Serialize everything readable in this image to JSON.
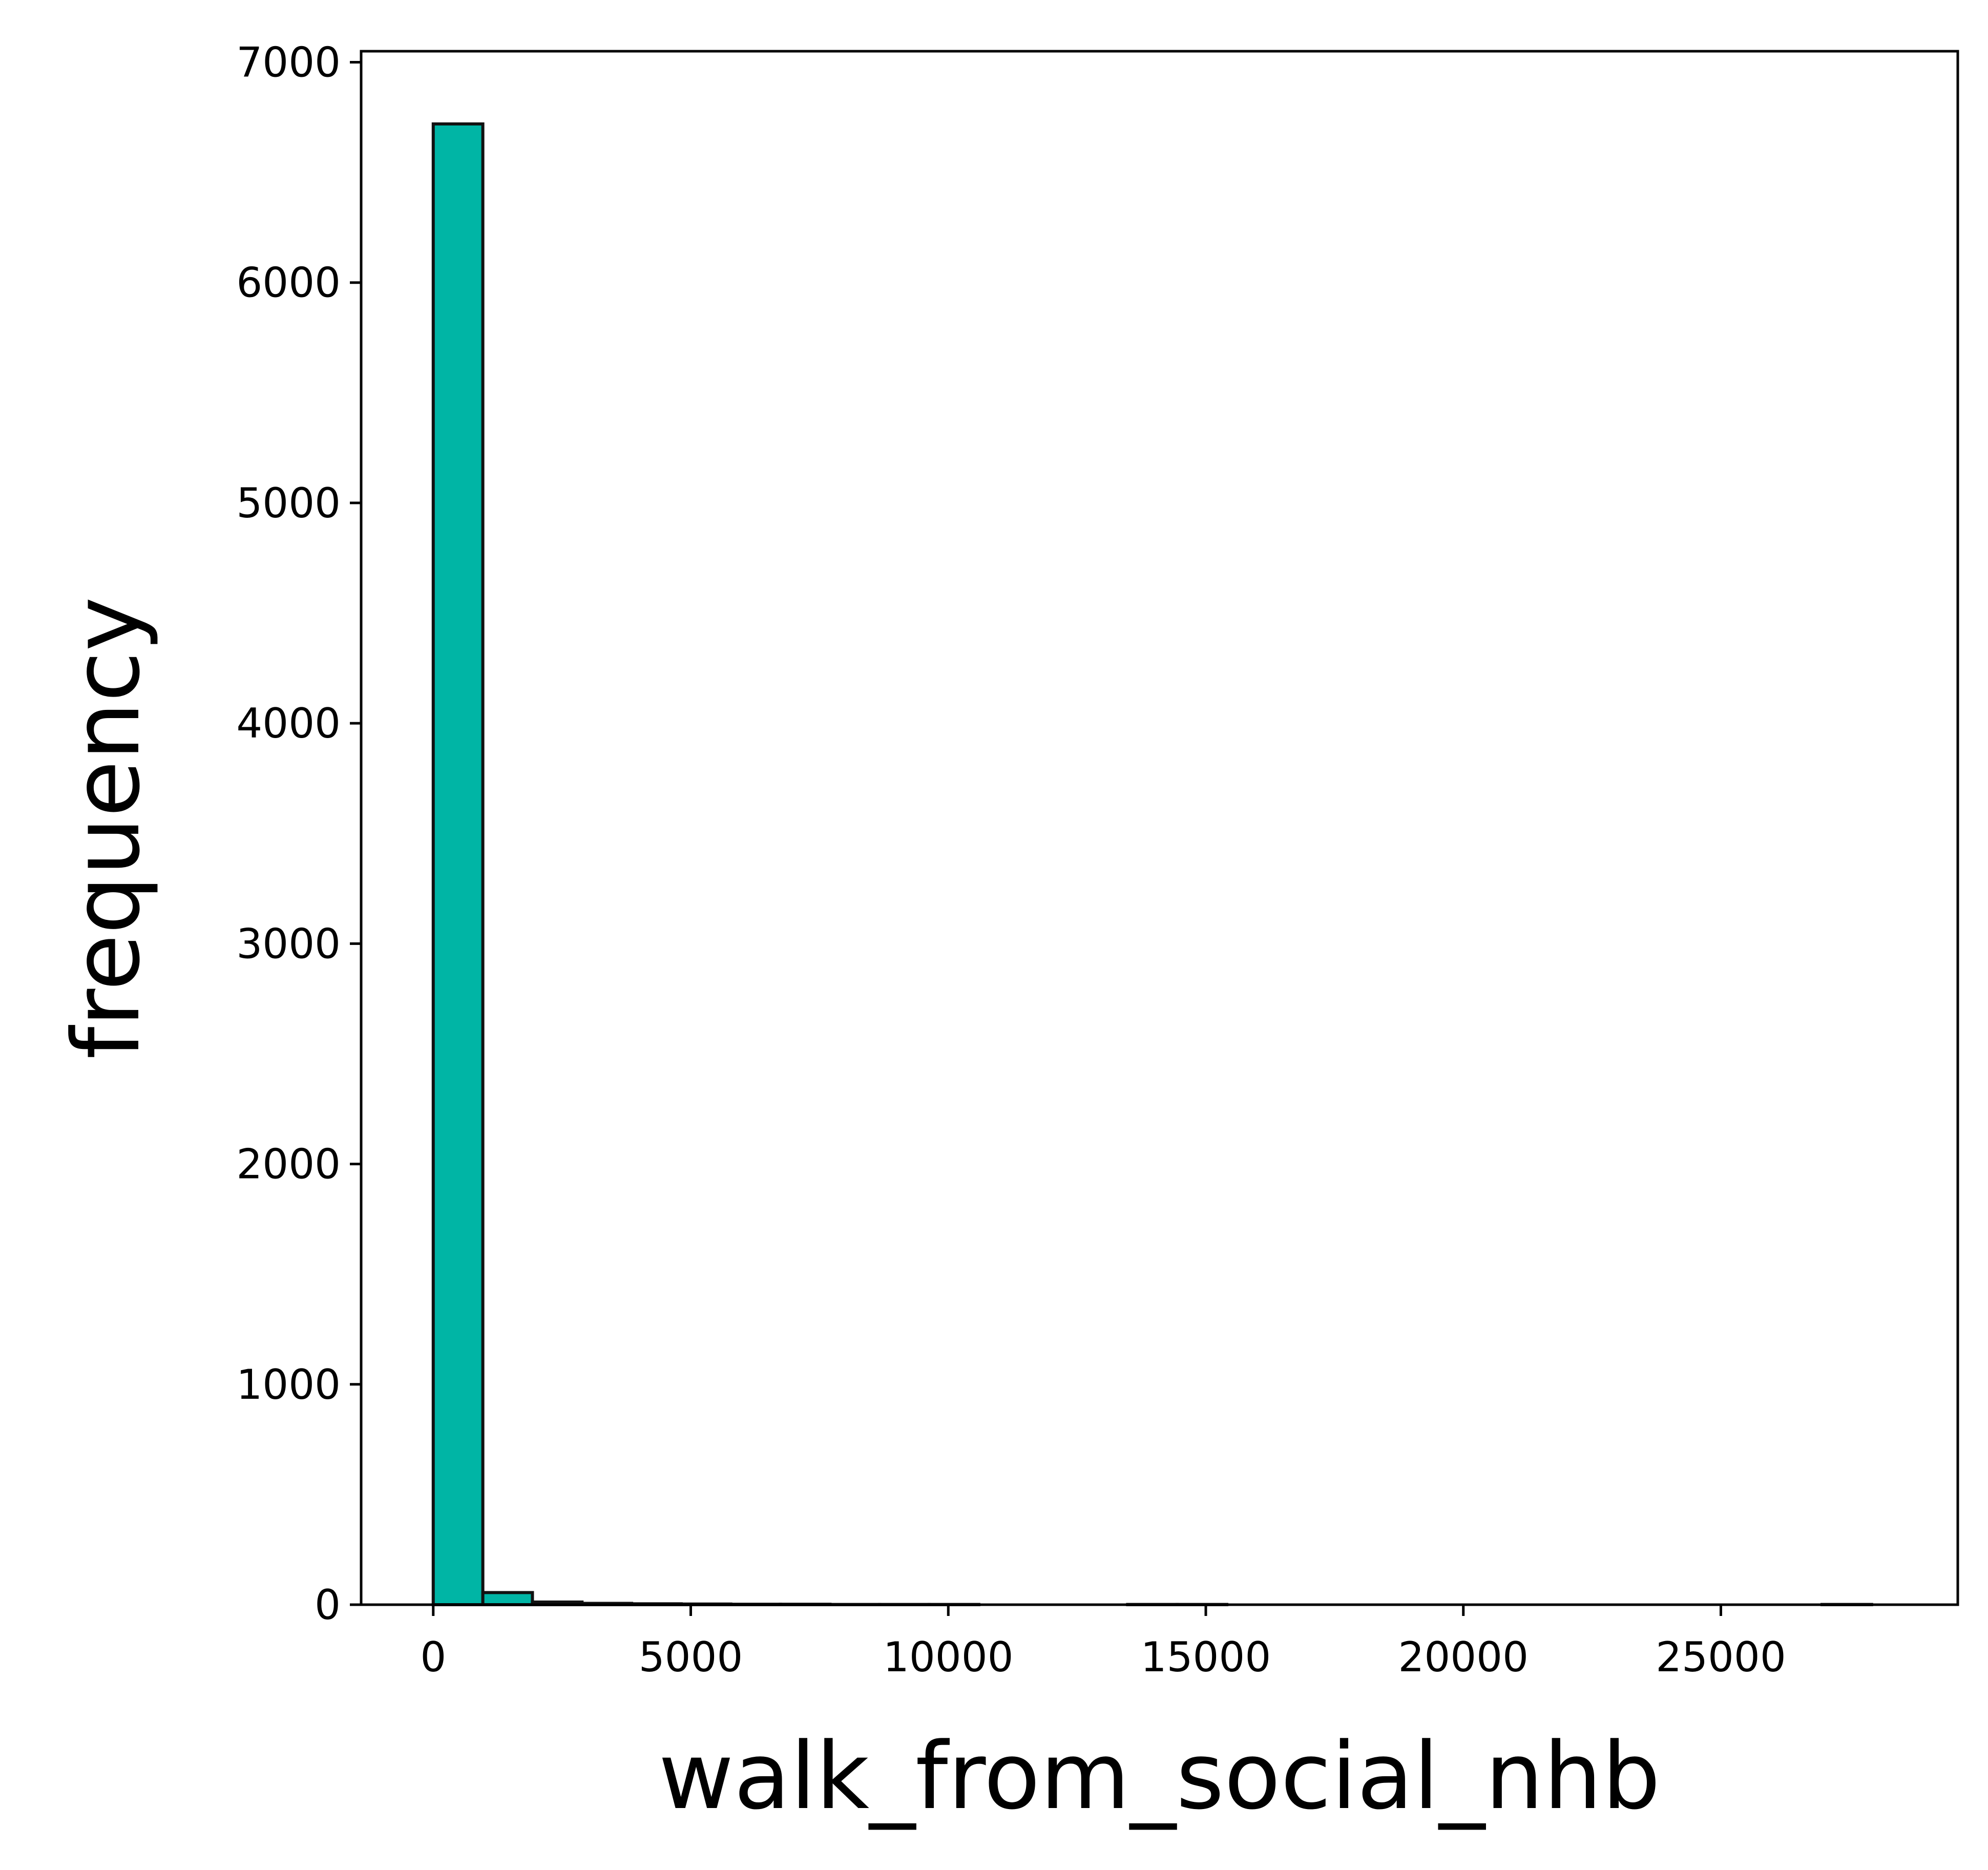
{
  "chart_data": {
    "type": "bar",
    "subtype": "histogram",
    "title": "",
    "xlabel": "walk_from_social_nhb",
    "ylabel": "frequency",
    "xlim": [
      -1400,
      29600
    ],
    "ylim": [
      0,
      7050
    ],
    "xticks": [
      0,
      5000,
      10000,
      15000,
      20000,
      25000
    ],
    "yticks": [
      0,
      1000,
      2000,
      3000,
      4000,
      5000,
      6000,
      7000
    ],
    "grid": false,
    "bar_color": "#00b5a5",
    "edge_color": "#111111",
    "bin_width": 963,
    "bins": [
      {
        "x0": 0,
        "count": 6720
      },
      {
        "x0": 963,
        "count": 55
      },
      {
        "x0": 1926,
        "count": 12
      },
      {
        "x0": 2889,
        "count": 6
      },
      {
        "x0": 3852,
        "count": 4
      },
      {
        "x0": 4815,
        "count": 3
      },
      {
        "x0": 5778,
        "count": 2
      },
      {
        "x0": 6741,
        "count": 2
      },
      {
        "x0": 7704,
        "count": 1
      },
      {
        "x0": 8667,
        "count": 1
      },
      {
        "x0": 9630,
        "count": 1
      },
      {
        "x0": 10593,
        "count": 0
      },
      {
        "x0": 11556,
        "count": 0
      },
      {
        "x0": 12519,
        "count": 0
      },
      {
        "x0": 13482,
        "count": 1
      },
      {
        "x0": 14445,
        "count": 1
      },
      {
        "x0": 15408,
        "count": 0
      },
      {
        "x0": 16371,
        "count": 0
      },
      {
        "x0": 17334,
        "count": 0
      },
      {
        "x0": 18297,
        "count": 0
      },
      {
        "x0": 19260,
        "count": 0
      },
      {
        "x0": 20223,
        "count": 0
      },
      {
        "x0": 21186,
        "count": 0
      },
      {
        "x0": 22149,
        "count": 0
      },
      {
        "x0": 23112,
        "count": 0
      },
      {
        "x0": 24075,
        "count": 0
      },
      {
        "x0": 25038,
        "count": 0
      },
      {
        "x0": 26001,
        "count": 0
      },
      {
        "x0": 26964,
        "count": 1
      }
    ]
  }
}
